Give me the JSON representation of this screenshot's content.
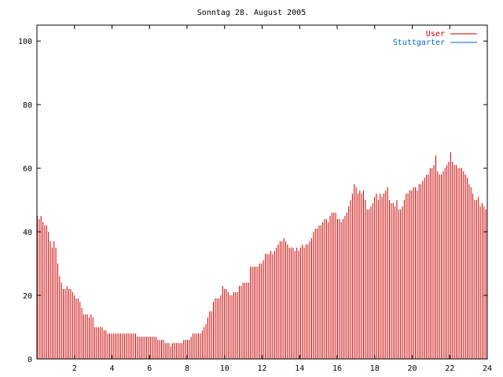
{
  "chart_data": {
    "type": "bar",
    "title": "Sonntag 28. August 2005",
    "xlabel": "",
    "ylabel": "",
    "xlim": [
      0,
      24
    ],
    "ylim": [
      0,
      105
    ],
    "xticks": [
      2,
      4,
      6,
      8,
      10,
      12,
      14,
      16,
      18,
      20,
      22,
      24
    ],
    "yticks": [
      0,
      20,
      40,
      60,
      80,
      100
    ],
    "grid": false,
    "legend_position": "top-right",
    "series": [
      {
        "name": "User",
        "color": "#cc0000",
        "sample_interval_hours": 0.0833,
        "values": [
          45,
          44,
          45,
          43,
          42,
          42,
          40,
          37,
          35,
          37,
          35,
          30,
          26,
          24,
          22,
          22,
          23,
          22,
          22,
          21,
          20,
          19,
          19,
          18,
          16,
          14,
          14,
          14,
          13,
          14,
          13,
          10,
          10,
          10,
          10,
          10,
          9,
          9,
          8,
          8,
          8,
          8,
          8,
          8,
          8,
          8,
          8,
          8,
          8,
          8,
          8,
          8,
          8,
          8,
          7,
          7,
          7,
          7,
          7,
          7,
          7,
          7,
          7,
          7,
          7,
          6,
          6,
          6,
          6,
          5,
          5,
          5,
          4,
          5,
          5,
          5,
          5,
          5,
          5,
          6,
          6,
          6,
          6,
          7,
          8,
          8,
          8,
          8,
          8,
          9,
          10,
          11,
          13,
          15,
          15,
          18,
          19,
          19,
          19,
          20,
          23,
          22,
          22,
          21,
          20,
          20,
          21,
          21,
          21,
          23,
          23,
          24,
          24,
          24,
          24,
          29,
          29,
          29,
          29,
          29,
          30,
          30,
          31,
          33,
          33,
          33,
          34,
          33,
          34,
          35,
          36,
          37,
          37,
          38,
          37,
          36,
          35,
          35,
          35,
          34,
          35,
          34,
          35,
          36,
          35,
          36,
          36,
          37,
          38,
          40,
          41,
          41,
          42,
          42,
          43,
          44,
          44,
          43,
          45,
          46,
          46,
          46,
          44,
          44,
          43,
          44,
          45,
          46,
          48,
          50,
          52,
          55,
          54,
          52,
          53,
          52,
          53,
          50,
          47,
          47,
          48,
          49,
          51,
          52,
          50,
          52,
          51,
          52,
          53,
          54,
          50,
          49,
          49,
          48,
          50,
          47,
          47,
          48,
          50,
          52,
          52,
          53,
          53,
          54,
          54,
          53,
          55,
          55,
          56,
          57,
          58,
          58,
          60,
          60,
          61,
          64,
          59,
          58,
          58,
          59,
          60,
          61,
          62,
          65,
          62,
          61,
          61,
          60,
          60,
          60,
          59,
          58,
          57,
          55,
          54,
          52,
          50,
          50,
          51,
          48,
          49,
          48,
          47
        ]
      },
      {
        "name": "Stuttgarter",
        "color": "#0066cc",
        "values": []
      }
    ]
  }
}
